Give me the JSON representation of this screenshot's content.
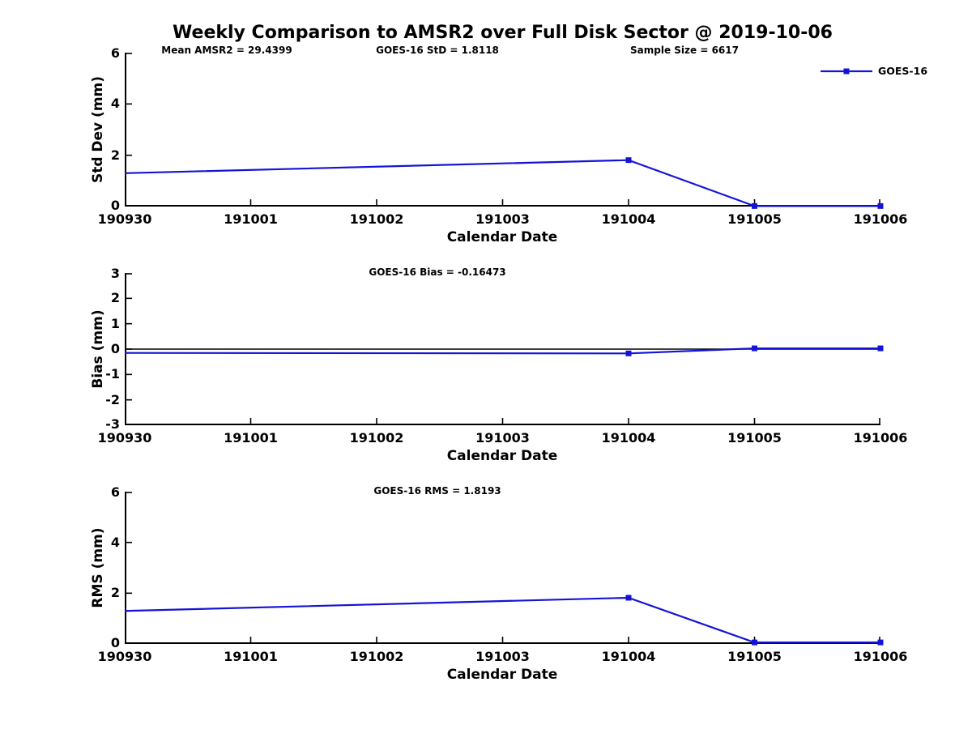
{
  "title": "Weekly Comparison to AMSR2 over Full Disk Sector @ 2019-10-06",
  "legend": {
    "label": "GOES-16"
  },
  "colors": {
    "series": "#1414d6",
    "axis": "#000000",
    "zero_line": "#000000",
    "background": "#ffffff"
  },
  "chart_data": {
    "type": "line",
    "series_name": "GOES-16",
    "x_categories": [
      "190930",
      "191001",
      "191002",
      "191003",
      "191004",
      "191005",
      "191006"
    ],
    "legend_position": "top-right",
    "grid": false,
    "charts": [
      {
        "name": "std-dev",
        "ylabel": "Std Dev (mm)",
        "xlabel": "Calendar Date",
        "ylim": [
          0,
          6
        ],
        "yticks": [
          0,
          2,
          4,
          6
        ],
        "zero_line": false,
        "annotations": [
          {
            "text": "Mean AMSR2 = 29.4399"
          },
          {
            "text": "GOES-16 StD = 1.8118"
          },
          {
            "text": "Sample Size = 6617"
          }
        ],
        "points": [
          {
            "x": "190930",
            "y": 1.3,
            "marker": false
          },
          {
            "x": "191004",
            "y": 1.81,
            "marker": true
          },
          {
            "x": "191005",
            "y": 0.02,
            "marker": true
          },
          {
            "x": "191006",
            "y": 0.02,
            "marker": true
          }
        ]
      },
      {
        "name": "bias",
        "ylabel": "Bias (mm)",
        "xlabel": "Calendar Date",
        "ylim": [
          -3,
          3
        ],
        "yticks": [
          -3,
          -2,
          -1,
          0,
          1,
          2,
          3
        ],
        "zero_line": true,
        "annotations": [
          {
            "text": "GOES-16 Bias  = -0.16473"
          }
        ],
        "points": [
          {
            "x": "190930",
            "y": -0.15,
            "marker": false
          },
          {
            "x": "191004",
            "y": -0.17,
            "marker": true
          },
          {
            "x": "191005",
            "y": 0.03,
            "marker": true
          },
          {
            "x": "191006",
            "y": 0.03,
            "marker": true
          }
        ]
      },
      {
        "name": "rms",
        "ylabel": "RMS (mm)",
        "xlabel": "Calendar Date",
        "ylim": [
          0,
          6
        ],
        "yticks": [
          0,
          2,
          4,
          6
        ],
        "zero_line": false,
        "annotations": [
          {
            "text": "GOES-16 RMS = 1.8193"
          }
        ],
        "points": [
          {
            "x": "190930",
            "y": 1.3,
            "marker": false
          },
          {
            "x": "191004",
            "y": 1.82,
            "marker": true
          },
          {
            "x": "191005",
            "y": 0.06,
            "marker": true
          },
          {
            "x": "191006",
            "y": 0.06,
            "marker": true
          }
        ]
      }
    ]
  }
}
